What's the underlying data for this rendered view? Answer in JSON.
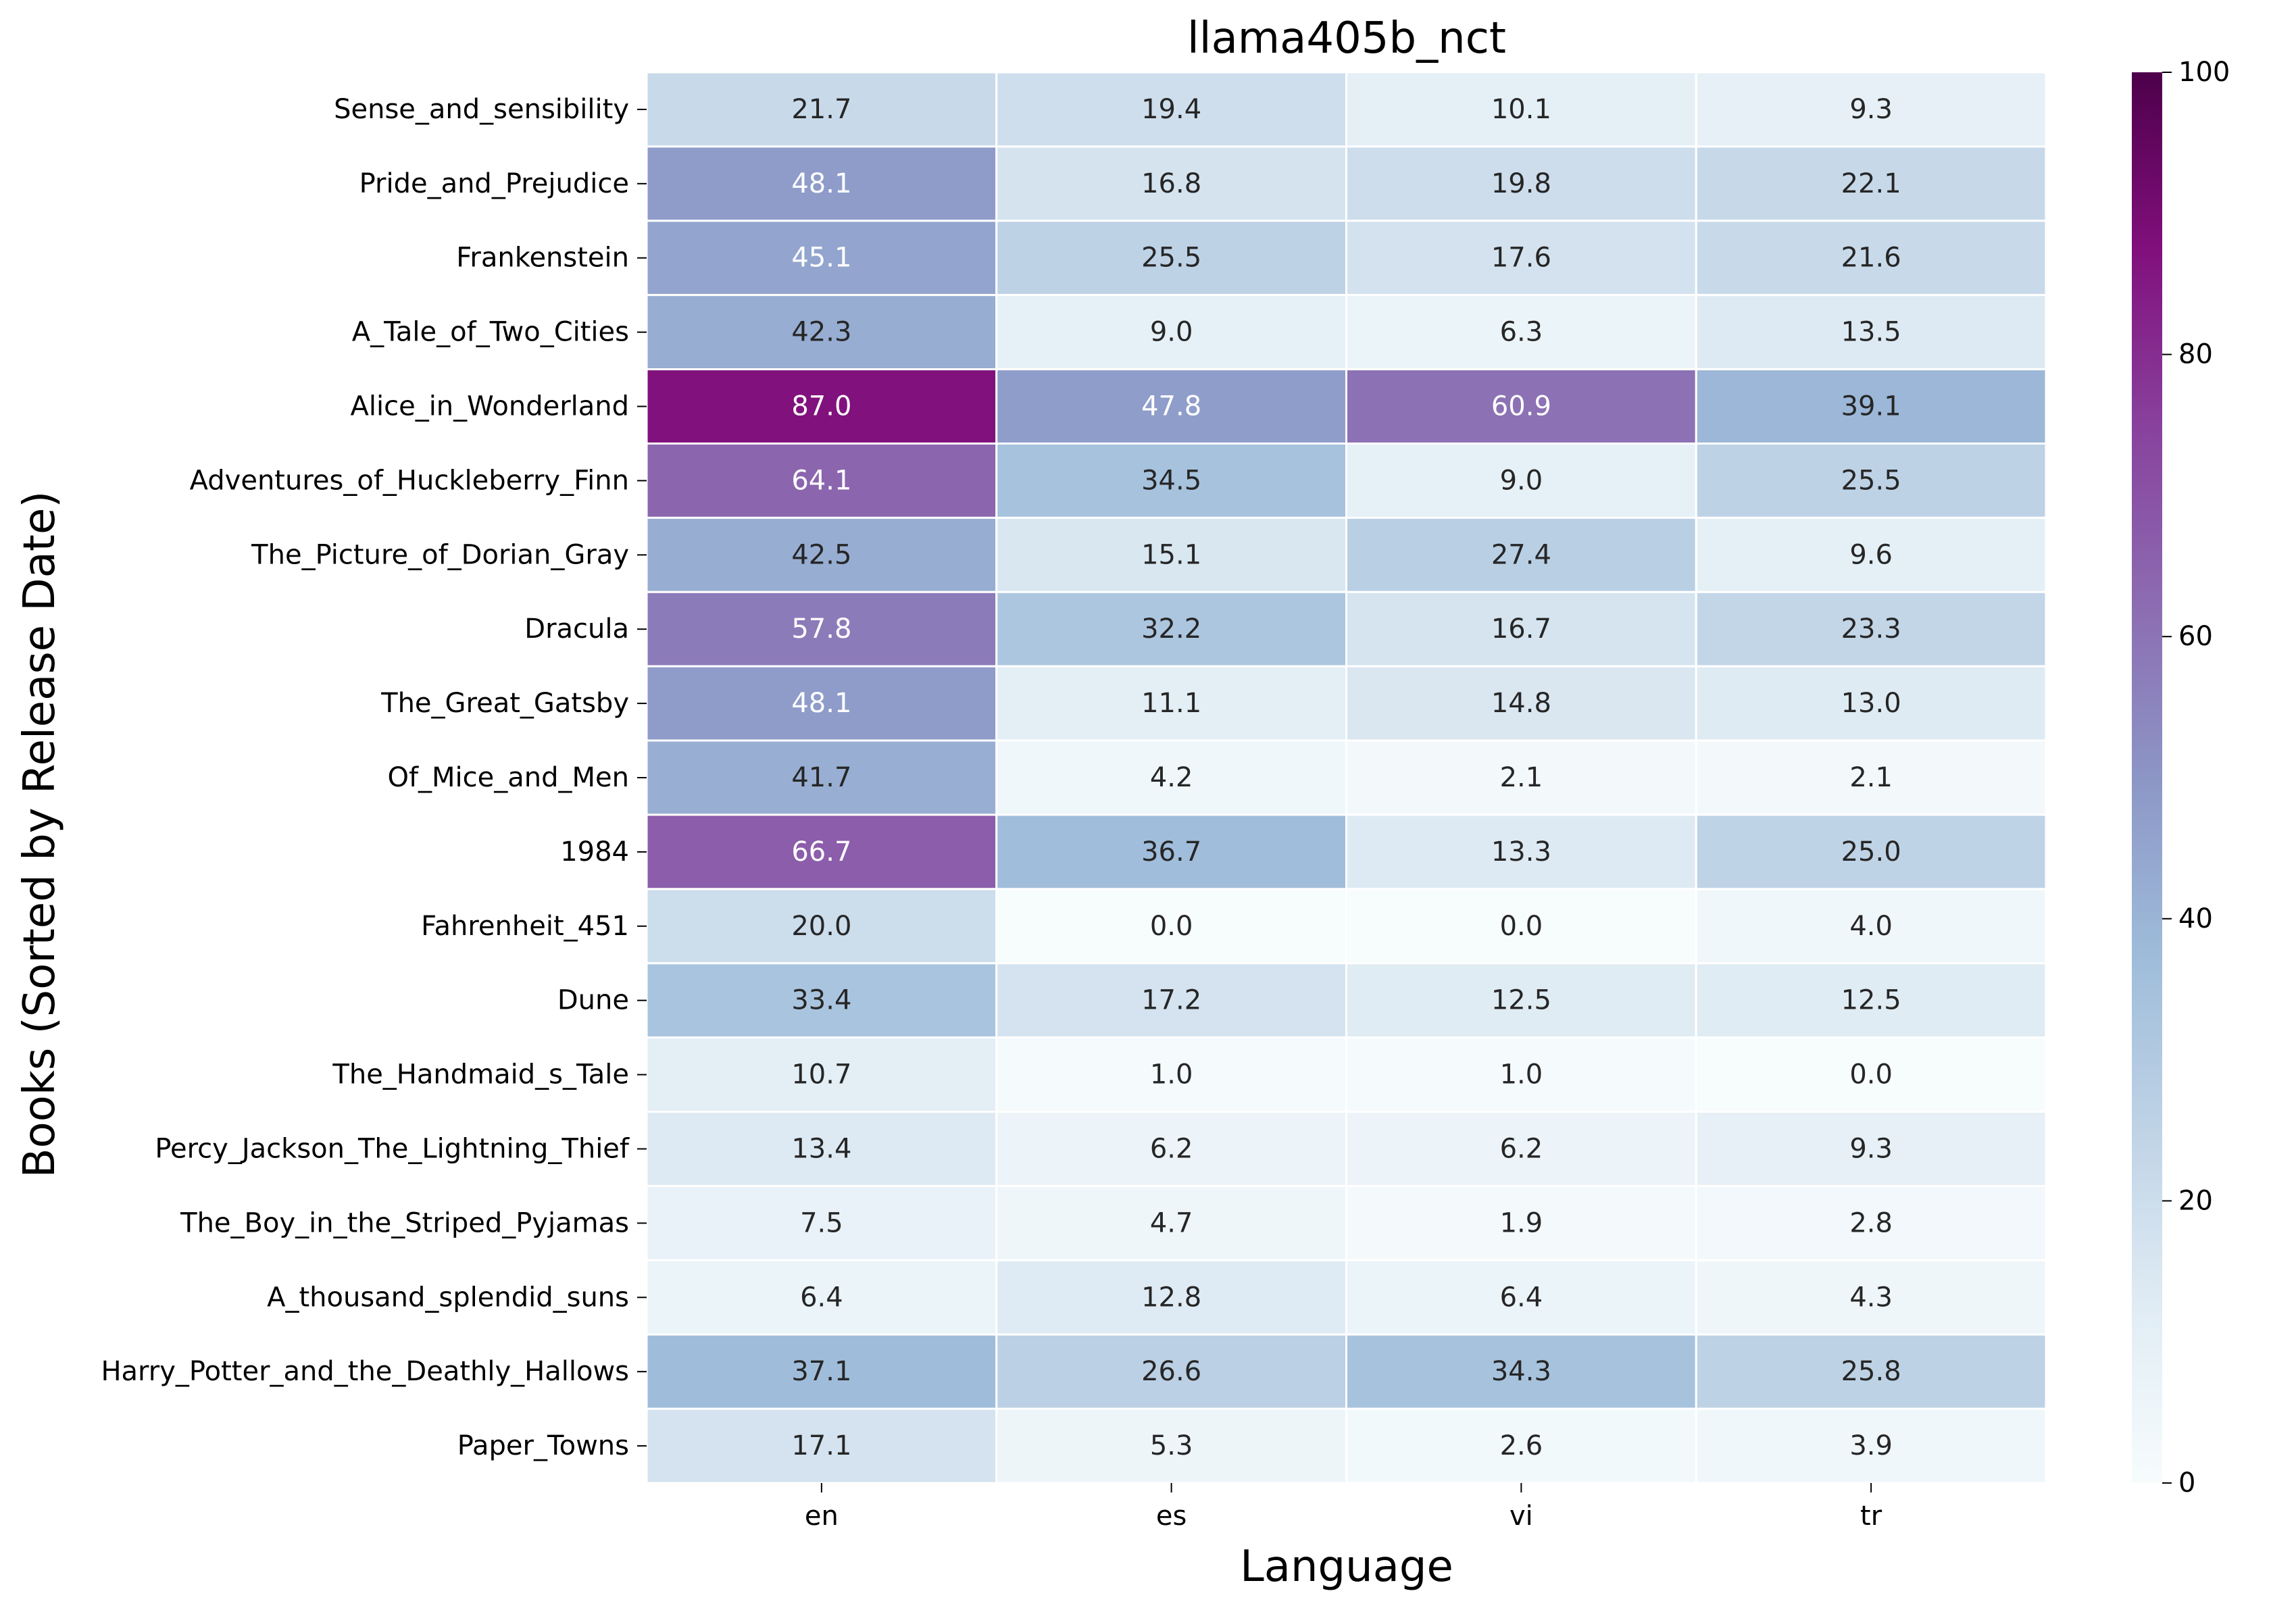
{
  "chart_data": {
    "type": "heatmap",
    "title": "llama405b_nct",
    "xlabel": "Language",
    "ylabel": "Books (Sorted by Release Date)",
    "columns": [
      "en",
      "es",
      "vi",
      "tr"
    ],
    "rows": [
      "Sense_and_sensibility",
      "Pride_and_Prejudice",
      "Frankenstein",
      "A_Tale_of_Two_Cities",
      "Alice_in_Wonderland",
      "Adventures_of_Huckleberry_Finn",
      "The_Picture_of_Dorian_Gray",
      "Dracula",
      "The_Great_Gatsby",
      "Of_Mice_and_Men",
      "1984",
      "Fahrenheit_451",
      "Dune",
      "The_Handmaid_s_Tale",
      "Percy_Jackson_The_Lightning_Thief",
      "The_Boy_in_the_Striped_Pyjamas",
      "A_thousand_splendid_suns",
      "Harry_Potter_and_the_Deathly_Hallows",
      "Paper_Towns"
    ],
    "values": [
      [
        21.7,
        19.4,
        10.1,
        9.3
      ],
      [
        48.1,
        16.8,
        19.8,
        22.1
      ],
      [
        45.1,
        25.5,
        17.6,
        21.6
      ],
      [
        42.3,
        9.0,
        6.3,
        13.5
      ],
      [
        87.0,
        47.8,
        60.9,
        39.1
      ],
      [
        64.1,
        34.5,
        9.0,
        25.5
      ],
      [
        42.5,
        15.1,
        27.4,
        9.6
      ],
      [
        57.8,
        32.2,
        16.7,
        23.3
      ],
      [
        48.1,
        11.1,
        14.8,
        13.0
      ],
      [
        41.7,
        4.2,
        2.1,
        2.1
      ],
      [
        66.7,
        36.7,
        13.3,
        25.0
      ],
      [
        20.0,
        0.0,
        0.0,
        4.0
      ],
      [
        33.4,
        17.2,
        12.5,
        12.5
      ],
      [
        10.7,
        1.0,
        1.0,
        0.0
      ],
      [
        13.4,
        6.2,
        6.2,
        9.3
      ],
      [
        7.5,
        4.7,
        1.9,
        2.8
      ],
      [
        6.4,
        12.8,
        6.4,
        4.3
      ],
      [
        37.1,
        26.6,
        34.3,
        25.8
      ],
      [
        17.1,
        5.3,
        2.6,
        3.9
      ]
    ],
    "value_format": "0.0",
    "colormap": "BuPu",
    "colormap_stops": [
      "#f7fcfd",
      "#e0ecf4",
      "#bfd3e6",
      "#9ebcda",
      "#8c96c6",
      "#8c6bb1",
      "#88419d",
      "#810f7c",
      "#4d004b"
    ],
    "vmin": 0,
    "vmax": 100,
    "colorbar_ticks": [
      0,
      20,
      40,
      60,
      80,
      100
    ],
    "annotation_colors": {
      "light": "#ffffff",
      "dark": "#262626"
    },
    "cell_border_color": "#ffffff",
    "grid": false,
    "legend": "colorbar-right"
  }
}
